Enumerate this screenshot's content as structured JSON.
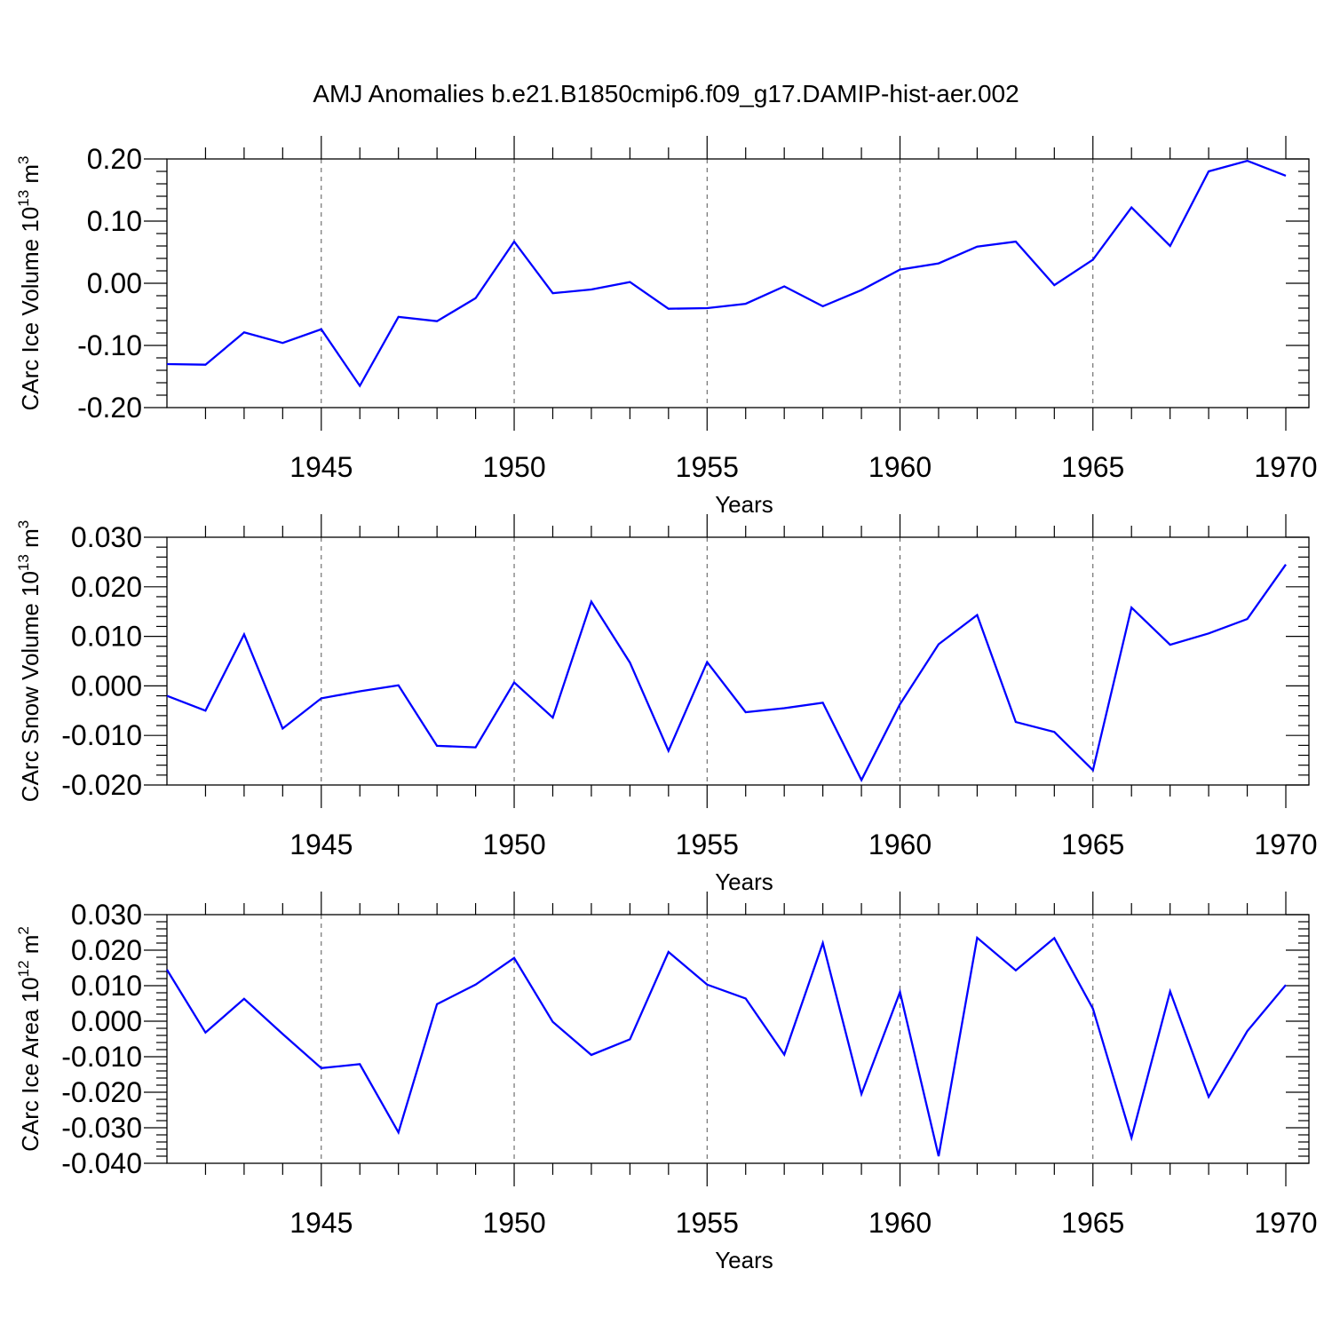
{
  "title": "AMJ Anomalies b.e21.B1850cmip6.f09_g17.DAMIP-hist-aer.002",
  "line_color": "#0000ff",
  "chart_data": [
    {
      "type": "line",
      "ylabel": "CArc Ice Volume 10",
      "ylabel_exp": "13",
      "ylabel_unit": " m",
      "ylabel_unit_exp": "3",
      "xlabel": "Years",
      "xlim": [
        1941,
        1970
      ],
      "ylim": [
        -0.2,
        0.2
      ],
      "yticks": [
        -0.2,
        -0.1,
        0.0,
        0.1,
        0.2
      ],
      "ytick_labels": [
        "-0.20",
        "-0.10",
        "0.00",
        "0.10",
        "0.20"
      ],
      "xticks": [
        1945,
        1950,
        1955,
        1960,
        1965,
        1970
      ],
      "xtick_labels": [
        "1945",
        "1950",
        "1955",
        "1960",
        "1965",
        "1970"
      ],
      "grid": "vertical dashed at major x ticks",
      "x": [
        1941,
        1942,
        1943,
        1944,
        1945,
        1946,
        1947,
        1948,
        1949,
        1950,
        1951,
        1952,
        1953,
        1954,
        1955,
        1956,
        1957,
        1958,
        1959,
        1960,
        1961,
        1962,
        1963,
        1964,
        1965,
        1966,
        1967,
        1968,
        1969,
        1970
      ],
      "y": [
        -0.13,
        -0.131,
        -0.079,
        -0.096,
        -0.074,
        -0.165,
        -0.054,
        -0.061,
        -0.024,
        0.067,
        -0.016,
        -0.01,
        0.002,
        -0.041,
        -0.04,
        -0.033,
        -0.005,
        -0.037,
        -0.011,
        0.022,
        0.032,
        0.059,
        0.067,
        -0.003,
        0.038,
        0.122,
        0.06,
        0.18,
        0.197,
        0.173
      ]
    },
    {
      "type": "line",
      "ylabel": "CArc Snow Volume 10",
      "ylabel_exp": "13",
      "ylabel_unit": " m",
      "ylabel_unit_exp": "3",
      "xlabel": "Years",
      "xlim": [
        1941,
        1970
      ],
      "ylim": [
        -0.02,
        0.03
      ],
      "yticks": [
        -0.02,
        -0.01,
        0.0,
        0.01,
        0.02,
        0.03
      ],
      "ytick_labels": [
        "-0.020",
        "-0.010",
        "0.000",
        "0.010",
        "0.020",
        "0.030"
      ],
      "xticks": [
        1945,
        1950,
        1955,
        1960,
        1965,
        1970
      ],
      "xtick_labels": [
        "1945",
        "1950",
        "1955",
        "1960",
        "1965",
        "1970"
      ],
      "grid": "vertical dashed at major x ticks",
      "x": [
        1941,
        1942,
        1943,
        1944,
        1945,
        1946,
        1947,
        1948,
        1949,
        1950,
        1951,
        1952,
        1953,
        1954,
        1955,
        1956,
        1957,
        1958,
        1959,
        1960,
        1961,
        1962,
        1963,
        1964,
        1965,
        1966,
        1967,
        1968,
        1969,
        1970
      ],
      "y": [
        -0.002,
        -0.005,
        0.0104,
        -0.0086,
        -0.0025,
        -0.0011,
        0.0001,
        -0.0121,
        -0.0124,
        0.0007,
        -0.0064,
        0.017,
        0.0047,
        -0.0131,
        0.0048,
        -0.0053,
        -0.0045,
        -0.0034,
        -0.019,
        -0.0037,
        0.0084,
        0.0143,
        -0.0073,
        -0.0093,
        -0.017,
        0.0158,
        0.0083,
        0.0106,
        0.0135,
        0.0245
      ]
    },
    {
      "type": "line",
      "ylabel": "CArc Ice Area 10",
      "ylabel_exp": "12",
      "ylabel_unit": " m",
      "ylabel_unit_exp": "2",
      "xlabel": "Years",
      "xlim": [
        1941,
        1970
      ],
      "ylim": [
        -0.04,
        0.03
      ],
      "yticks": [
        -0.04,
        -0.03,
        -0.02,
        -0.01,
        0.0,
        0.01,
        0.02,
        0.03
      ],
      "ytick_labels": [
        "-0.040",
        "-0.030",
        "-0.020",
        "-0.010",
        "0.000",
        "0.010",
        "0.020",
        "0.030"
      ],
      "xticks": [
        1945,
        1950,
        1955,
        1960,
        1965,
        1970
      ],
      "xtick_labels": [
        "1945",
        "1950",
        "1955",
        "1960",
        "1965",
        "1970"
      ],
      "grid": "vertical dashed at major x ticks",
      "x": [
        1941,
        1942,
        1943,
        1944,
        1945,
        1946,
        1947,
        1948,
        1949,
        1950,
        1951,
        1952,
        1953,
        1954,
        1955,
        1956,
        1957,
        1958,
        1959,
        1960,
        1961,
        1962,
        1963,
        1964,
        1965,
        1966,
        1967,
        1968,
        1969,
        1970
      ],
      "y": [
        0.0145,
        -0.0032,
        0.0063,
        -0.0036,
        -0.0132,
        -0.0121,
        -0.0313,
        0.0048,
        0.0103,
        0.0178,
        -0.0002,
        -0.0095,
        -0.0051,
        0.0195,
        0.0103,
        0.0064,
        -0.0094,
        0.022,
        -0.0205,
        0.0082,
        -0.038,
        0.0235,
        0.0143,
        0.0234,
        0.0035,
        -0.0328,
        0.0084,
        -0.0213,
        -0.0028,
        0.0102
      ]
    }
  ]
}
